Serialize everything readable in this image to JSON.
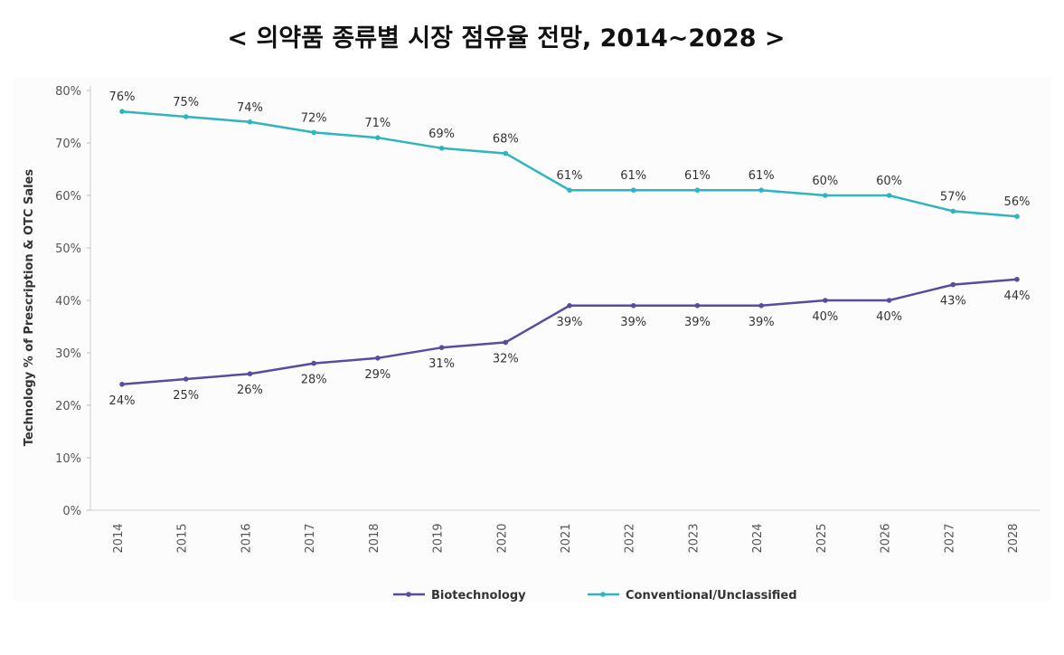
{
  "title": "< 의약품 종류별 시장 점유율 전망, 2014~2028 >",
  "chart_data": {
    "type": "line",
    "title": "< 의약품 종류별 시장 점유율 전망, 2014~2028 >",
    "xlabel": "",
    "ylabel": "Technology % of Prescription & OTC Sales",
    "ylim": [
      0,
      80
    ],
    "yticks": [
      "0%",
      "10%",
      "20%",
      "30%",
      "40%",
      "50%",
      "60%",
      "70%",
      "80%"
    ],
    "categories": [
      "2014",
      "2015",
      "2016",
      "2017",
      "2018",
      "2019",
      "2020",
      "2021",
      "2022",
      "2023",
      "2024",
      "2025",
      "2026",
      "2027",
      "2028"
    ],
    "series": [
      {
        "name": "Biotechnology",
        "color": "#5b4b9f",
        "values": [
          24,
          25,
          26,
          28,
          29,
          31,
          32,
          39,
          39,
          39,
          39,
          40,
          40,
          43,
          44
        ]
      },
      {
        "name": "Conventional/Unclassified",
        "color": "#2fb5bd",
        "values": [
          76,
          75,
          74,
          72,
          71,
          69,
          68,
          61,
          61,
          61,
          61,
          60,
          60,
          57,
          56
        ]
      }
    ],
    "grid": false,
    "legend": "bottom"
  }
}
